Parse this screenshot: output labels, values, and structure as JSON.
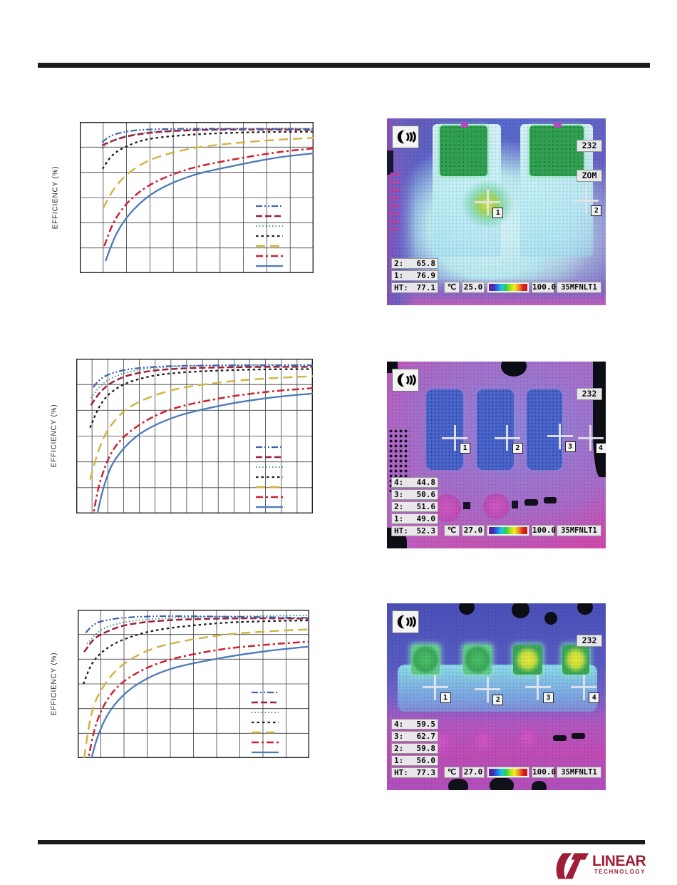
{
  "page": {
    "background": "#ffffff",
    "rule_color": "#1b1b1b"
  },
  "line_styles": [
    {
      "key": "blue-dash-dot-dot",
      "color": "#3e63ae",
      "dash": "9 3 2 3 2 3",
      "width": 2.2
    },
    {
      "key": "darkred-dashed",
      "color": "#9c1f3e",
      "dash": "9 4",
      "width": 2.5
    },
    {
      "key": "teal-dotted",
      "color": "#3f8d7f",
      "dash": "1.6 3",
      "width": 1.8
    },
    {
      "key": "black-dotted",
      "color": "#1d1d1d",
      "dash": "3.5 4",
      "width": 2.3
    },
    {
      "key": "yellow-dashed",
      "color": "#d2b23e",
      "dash": "13 7",
      "width": 2.4
    },
    {
      "key": "red-dash-dot",
      "color": "#ce2133",
      "dash": "10 4 3 4",
      "width": 2.5
    },
    {
      "key": "blue-solid",
      "color": "#4a7ab9",
      "dash": "",
      "width": 2.3
    }
  ],
  "charts": [
    {
      "type": "line",
      "ylabel": "EFFICIENCY (%)",
      "grid": {
        "cols": 10,
        "rows": 6,
        "line_color": "#3c3c3c",
        "border_color": "#222222"
      },
      "series": [
        {
          "style": 0,
          "points": [
            [
              0.095,
              0.865
            ],
            [
              0.13,
              0.905
            ],
            [
              0.18,
              0.93
            ],
            [
              0.27,
              0.948
            ],
            [
              0.45,
              0.955
            ],
            [
              0.7,
              0.955
            ],
            [
              1,
              0.952
            ]
          ]
        },
        {
          "style": 1,
          "points": [
            [
              0.095,
              0.845
            ],
            [
              0.14,
              0.875
            ],
            [
              0.22,
              0.91
            ],
            [
              0.35,
              0.935
            ],
            [
              0.55,
              0.948
            ],
            [
              0.8,
              0.95
            ],
            [
              1,
              0.948
            ]
          ]
        },
        {
          "style": 2,
          "points": [
            [
              0.095,
              0.825
            ],
            [
              0.14,
              0.875
            ],
            [
              0.22,
              0.915
            ],
            [
              0.35,
              0.94
            ],
            [
              0.55,
              0.952
            ],
            [
              0.8,
              0.958
            ],
            [
              1,
              0.958
            ]
          ]
        },
        {
          "style": 3,
          "points": [
            [
              0.097,
              0.69
            ],
            [
              0.14,
              0.78
            ],
            [
              0.2,
              0.838
            ],
            [
              0.3,
              0.888
            ],
            [
              0.5,
              0.918
            ],
            [
              0.75,
              0.932
            ],
            [
              1,
              0.936
            ]
          ]
        },
        {
          "style": 4,
          "points": [
            [
              0.1,
              0.43
            ],
            [
              0.15,
              0.565
            ],
            [
              0.22,
              0.675
            ],
            [
              0.32,
              0.76
            ],
            [
              0.47,
              0.822
            ],
            [
              0.65,
              0.858
            ],
            [
              0.85,
              0.882
            ],
            [
              1,
              0.895
            ]
          ]
        },
        {
          "style": 5,
          "points": [
            [
              0.105,
              0.18
            ],
            [
              0.15,
              0.35
            ],
            [
              0.22,
              0.49
            ],
            [
              0.32,
              0.6
            ],
            [
              0.47,
              0.69
            ],
            [
              0.65,
              0.75
            ],
            [
              0.85,
              0.8
            ],
            [
              1,
              0.825
            ]
          ]
        },
        {
          "style": 6,
          "points": [
            [
              0.11,
              0.08
            ],
            [
              0.16,
              0.27
            ],
            [
              0.23,
              0.42
            ],
            [
              0.33,
              0.545
            ],
            [
              0.48,
              0.645
            ],
            [
              0.66,
              0.71
            ],
            [
              0.85,
              0.765
            ],
            [
              1,
              0.792
            ]
          ]
        }
      ]
    },
    {
      "type": "line",
      "ylabel": "EFFICIENCY (%)",
      "grid": {
        "cols": 15,
        "rows": 6,
        "line_color": "#3c3c3c",
        "border_color": "#222222"
      },
      "series": [
        {
          "style": 0,
          "points": [
            [
              0.072,
              0.815
            ],
            [
              0.1,
              0.865
            ],
            [
              0.15,
              0.905
            ],
            [
              0.24,
              0.935
            ],
            [
              0.4,
              0.952
            ],
            [
              0.7,
              0.957
            ],
            [
              1,
              0.957
            ]
          ]
        },
        {
          "style": 1,
          "points": [
            [
              0.062,
              0.7
            ],
            [
              0.1,
              0.78
            ],
            [
              0.15,
              0.845
            ],
            [
              0.24,
              0.9
            ],
            [
              0.4,
              0.933
            ],
            [
              0.7,
              0.946
            ],
            [
              1,
              0.948
            ]
          ]
        },
        {
          "style": 2,
          "points": [
            [
              0.062,
              0.745
            ],
            [
              0.1,
              0.82
            ],
            [
              0.15,
              0.875
            ],
            [
              0.24,
              0.92
            ],
            [
              0.4,
              0.948
            ],
            [
              0.7,
              0.96
            ],
            [
              1,
              0.96
            ]
          ]
        },
        {
          "style": 3,
          "points": [
            [
              0.058,
              0.555
            ],
            [
              0.1,
              0.695
            ],
            [
              0.15,
              0.785
            ],
            [
              0.24,
              0.857
            ],
            [
              0.4,
              0.905
            ],
            [
              0.7,
              0.928
            ],
            [
              1,
              0.933
            ]
          ]
        },
        {
          "style": 4,
          "points": [
            [
              0.058,
              0.22
            ],
            [
              0.1,
              0.43
            ],
            [
              0.15,
              0.575
            ],
            [
              0.24,
              0.7
            ],
            [
              0.4,
              0.795
            ],
            [
              0.6,
              0.845
            ],
            [
              0.8,
              0.872
            ],
            [
              1,
              0.887
            ]
          ]
        },
        {
          "style": 5,
          "points": [
            [
              0.068,
              -0.05
            ],
            [
              0.1,
              0.2
            ],
            [
              0.16,
              0.42
            ],
            [
              0.26,
              0.565
            ],
            [
              0.4,
              0.672
            ],
            [
              0.6,
              0.742
            ],
            [
              0.8,
              0.785
            ],
            [
              1,
              0.81
            ]
          ]
        },
        {
          "style": 6,
          "points": [
            [
              0.082,
              -0.05
            ],
            [
              0.12,
              0.19
            ],
            [
              0.17,
              0.36
            ],
            [
              0.27,
              0.515
            ],
            [
              0.42,
              0.625
            ],
            [
              0.62,
              0.7
            ],
            [
              0.82,
              0.748
            ],
            [
              1,
              0.775
            ]
          ]
        }
      ]
    },
    {
      "type": "line",
      "ylabel": "EFFICIENCY (%)",
      "grid": {
        "cols": 10,
        "rows": 6,
        "line_color": "#3c3c3c",
        "border_color": "#222222"
      },
      "series": [
        {
          "style": 0,
          "points": [
            [
              0.035,
              0.845
            ],
            [
              0.07,
              0.9
            ],
            [
              0.12,
              0.928
            ],
            [
              0.22,
              0.948
            ],
            [
              0.4,
              0.957
            ],
            [
              0.7,
              0.952
            ],
            [
              1,
              0.945
            ]
          ]
        },
        {
          "style": 1,
          "points": [
            [
              0.028,
              0.715
            ],
            [
              0.07,
              0.8
            ],
            [
              0.12,
              0.848
            ],
            [
              0.22,
              0.9
            ],
            [
              0.4,
              0.93
            ],
            [
              0.7,
              0.942
            ],
            [
              1,
              0.94
            ]
          ]
        },
        {
          "style": 2,
          "points": [
            [
              0.04,
              0.77
            ],
            [
              0.09,
              0.85
            ],
            [
              0.16,
              0.9
            ],
            [
              0.3,
              0.935
            ],
            [
              0.55,
              0.952
            ],
            [
              0.8,
              0.958
            ],
            [
              1,
              0.962
            ]
          ]
        },
        {
          "style": 3,
          "points": [
            [
              0.025,
              0.5
            ],
            [
              0.06,
              0.63
            ],
            [
              0.11,
              0.72
            ],
            [
              0.2,
              0.8
            ],
            [
              0.35,
              0.865
            ],
            [
              0.6,
              0.908
            ],
            [
              0.8,
              0.922
            ],
            [
              1,
              0.928
            ]
          ]
        },
        {
          "style": 4,
          "points": [
            [
              0.028,
              0.0
            ],
            [
              0.06,
              0.3
            ],
            [
              0.11,
              0.48
            ],
            [
              0.2,
              0.635
            ],
            [
              0.35,
              0.75
            ],
            [
              0.6,
              0.825
            ],
            [
              0.8,
              0.852
            ],
            [
              1,
              0.868
            ]
          ]
        },
        {
          "style": 5,
          "points": [
            [
              0.04,
              -0.05
            ],
            [
              0.08,
              0.23
            ],
            [
              0.14,
              0.42
            ],
            [
              0.23,
              0.55
            ],
            [
              0.38,
              0.655
            ],
            [
              0.6,
              0.728
            ],
            [
              0.8,
              0.762
            ],
            [
              1,
              0.785
            ]
          ]
        },
        {
          "style": 6,
          "points": [
            [
              0.052,
              -0.05
            ],
            [
              0.09,
              0.16
            ],
            [
              0.15,
              0.34
            ],
            [
              0.25,
              0.49
            ],
            [
              0.4,
              0.6
            ],
            [
              0.62,
              0.675
            ],
            [
              0.82,
              0.722
            ],
            [
              1,
              0.752
            ]
          ]
        }
      ]
    }
  ],
  "thermal_scale_colors": [
    "#7c1684",
    "#3c2cc0",
    "#2078e8",
    "#20c8e0",
    "#28d050",
    "#a8e020",
    "#f4ee20",
    "#f09020",
    "#e02020",
    "#c01818"
  ],
  "thermal_images": [
    {
      "corner_label": "232",
      "mode_label": "ZOM",
      "readouts": [
        {
          "label": "2:",
          "value": "65.8"
        },
        {
          "label": "1:",
          "value": "76.9"
        },
        {
          "label": "HT:",
          "value": "77.1"
        }
      ],
      "unit": "℃",
      "scale_min": "25.0",
      "scale_max": "100.0",
      "tag": "35MFNLT1",
      "markers": [
        {
          "n": "1",
          "x": 46,
          "y": 45
        },
        {
          "n": "2",
          "x": 91,
          "y": 44
        }
      ]
    },
    {
      "corner_label": "232",
      "readouts": [
        {
          "label": "4:",
          "value": "44.8"
        },
        {
          "label": "3:",
          "value": "50.6"
        },
        {
          "label": "2:",
          "value": "51.6"
        },
        {
          "label": "1:",
          "value": "49.0"
        },
        {
          "label": "HT:",
          "value": "52.3"
        }
      ],
      "unit": "℃",
      "scale_min": "27.0",
      "scale_max": "100.0",
      "tag": "35MFNLT1",
      "markers": [
        {
          "n": "1",
          "x": 31,
          "y": 41
        },
        {
          "n": "2",
          "x": 55,
          "y": 41
        },
        {
          "n": "3",
          "x": 79,
          "y": 40
        },
        {
          "n": "4",
          "x": 93,
          "y": 41
        }
      ]
    },
    {
      "corner_label": "232",
      "readouts": [
        {
          "label": "4:",
          "value": "59.5"
        },
        {
          "label": "3:",
          "value": "62.7"
        },
        {
          "label": "2:",
          "value": "59.8"
        },
        {
          "label": "1:",
          "value": "56.0"
        },
        {
          "label": "HT:",
          "value": "77.3"
        }
      ],
      "unit": "℃",
      "scale_min": "27.0",
      "scale_max": "100.0",
      "tag": "35MFNLT1",
      "markers": [
        {
          "n": "1",
          "x": 22,
          "y": 45
        },
        {
          "n": "2",
          "x": 46,
          "y": 46
        },
        {
          "n": "3",
          "x": 69,
          "y": 45
        },
        {
          "n": "4",
          "x": 90,
          "y": 45
        }
      ]
    }
  ],
  "logo": {
    "brand": "LINEAR",
    "sub": "TECHNOLOGY",
    "color": "#9e1f35"
  }
}
